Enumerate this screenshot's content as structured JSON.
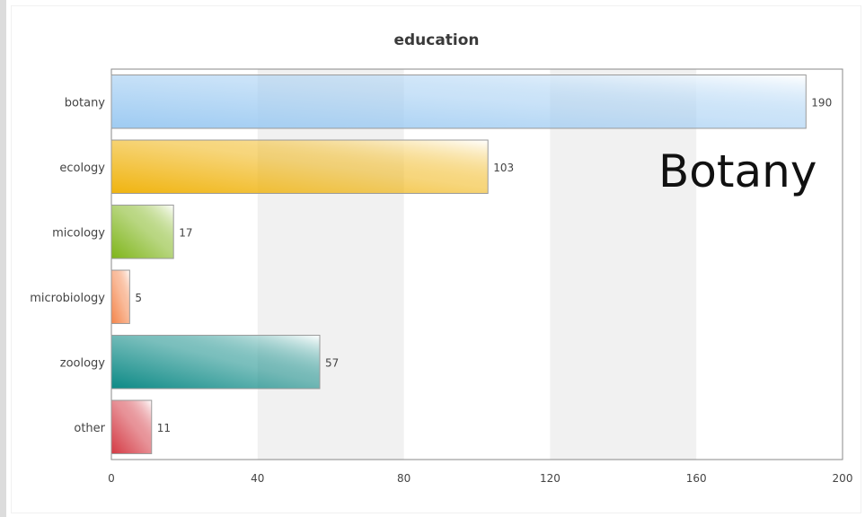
{
  "chart_data": {
    "type": "bar",
    "orientation": "horizontal",
    "title": "education",
    "xlabel": "",
    "ylabel": "",
    "categories": [
      "botany",
      "ecology",
      "micology",
      "microbiology",
      "zoology",
      "other"
    ],
    "values": [
      190,
      103,
      17,
      5,
      57,
      11
    ],
    "xlim": [
      0,
      200
    ],
    "xticks": [
      0,
      40,
      80,
      120,
      160,
      200
    ],
    "grid": "alternating vertical bands",
    "legend": "none",
    "bar_colors": [
      "#9ecbf2",
      "#f0b410",
      "#7fb51a",
      "#f4844a",
      "#0d8a86",
      "#d43a44"
    ]
  },
  "overlay": {
    "text": "Botany"
  },
  "colors": {
    "band": "#f1f1f1",
    "axis": "#888888",
    "bar_border": "#9a9a9a",
    "label": "#444444",
    "title": "#3a3a3a"
  }
}
